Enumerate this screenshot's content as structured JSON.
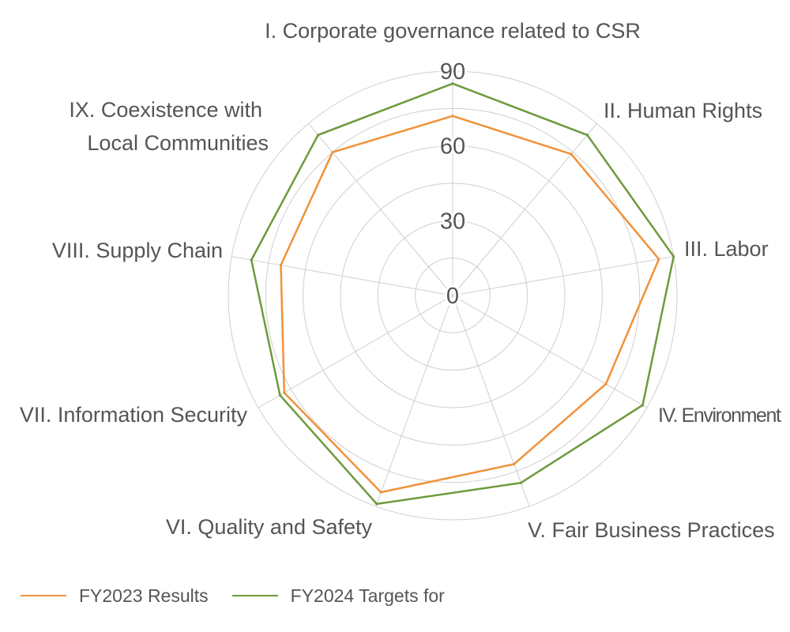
{
  "chart_data": {
    "type": "radar",
    "title": "",
    "categories": [
      [
        "I. Corporate governance related to CSR"
      ],
      [
        "II. Human Rights"
      ],
      [
        "III. Labor"
      ],
      [
        "IV. Environment"
      ],
      [
        "V. Fair Business Practices"
      ],
      [
        "VI. Quality and Safety"
      ],
      [
        "VII. Information Security"
      ],
      [
        "VIII. Supply Chain"
      ],
      [
        "IX. Coexistence with",
        "Local Communities"
      ]
    ],
    "series": [
      {
        "name": "FY2023 Results",
        "color": "#f0923a",
        "values": [
          72,
          74,
          84,
          71,
          72,
          84,
          78,
          70,
          75
        ]
      },
      {
        "name": "FY2024 Targets for",
        "color": "#6e9a3c",
        "values": [
          85,
          84,
          90,
          88,
          80,
          89,
          80,
          82,
          84
        ]
      }
    ],
    "rlim": [
      0,
      90
    ],
    "ticks": [
      0,
      30,
      60,
      90
    ],
    "grid": true,
    "legend": "bottom-left"
  }
}
